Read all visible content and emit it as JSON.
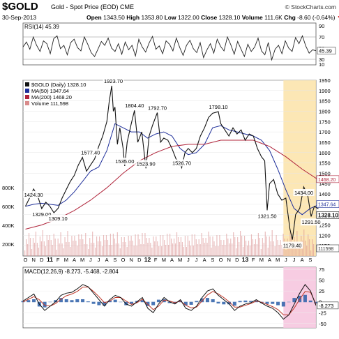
{
  "header": {
    "symbol": "$GOLD",
    "name": "Gold - Spot Price (EOD)",
    "exchange": "CME",
    "brand": "© StockCharts.com",
    "date": "30-Sep-2013",
    "open_label": "Open",
    "open": "1343.50",
    "high_label": "High",
    "high": "1353.80",
    "low_label": "Low",
    "low": "1322.00",
    "close_label": "Close",
    "close": "1328.10",
    "volume_label": "Volume",
    "volume": "111.6K",
    "chg_label": "Chg",
    "chg": "-8.60 (-0.64%)",
    "chg_arrow": "▼"
  },
  "colors": {
    "price": "#111111",
    "ma50": "#1f2f9a",
    "ma200": "#b0243a",
    "volume": "#d98b8b",
    "highlight": "#fbe3a8",
    "macd_highlight": "#f6c6df",
    "rsi": "#222222",
    "histogram": "#2a5ea8"
  },
  "chart_data": [
    {
      "type": "line",
      "title": "RSI(14) 45.39",
      "indicator": "RSI(14)",
      "last_value": 45.39,
      "ylim": [
        20,
        95
      ],
      "y_ticks": [
        10,
        30,
        50,
        70,
        90
      ],
      "reference_lines": [
        30,
        70
      ],
      "series": [
        {
          "name": "RSI(14)",
          "values": [
            52,
            61,
            48,
            70,
            55,
            44,
            63,
            58,
            40,
            67,
            72,
            49,
            55,
            38,
            60,
            66,
            51,
            45,
            70,
            57,
            42,
            35,
            48,
            62,
            55,
            68,
            50,
            44,
            58,
            39,
            61,
            47,
            55,
            36,
            66,
            52,
            43,
            59,
            71,
            48,
            54,
            40,
            63,
            57,
            45,
            68,
            51,
            37,
            55,
            64,
            49,
            42,
            60,
            33,
            47,
            58,
            41,
            66,
            53,
            45,
            70,
            56,
            39,
            62,
            48,
            35,
            57,
            44,
            52,
            68,
            45,
            38,
            60,
            29,
            48,
            55,
            40,
            63,
            50,
            44,
            69,
            58,
            72,
            54,
            41,
            47,
            45.39
          ]
        }
      ]
    },
    {
      "type": "line",
      "title": "$GOLD (Daily) 1328.10",
      "x_ticks": [
        "O",
        "N",
        "D",
        "11",
        "F",
        "M",
        "A",
        "M",
        "J",
        "J",
        "A",
        "S",
        "O",
        "N",
        "D",
        "12",
        "F",
        "M",
        "A",
        "M",
        "J",
        "J",
        "A",
        "S",
        "O",
        "N",
        "D",
        "13",
        "F",
        "M",
        "A",
        "M",
        "J",
        "J",
        "A",
        "S"
      ],
      "ylim": [
        1100,
        1950
      ],
      "y_ticks": [
        1150,
        1200,
        1250,
        1300,
        1350,
        1400,
        1450,
        1500,
        1550,
        1600,
        1650,
        1700,
        1750,
        1800,
        1850,
        1900,
        1950
      ],
      "volume_ticks": [
        "200K",
        "400K",
        "600K",
        "800K"
      ],
      "legend": [
        {
          "name": "$GOLD (Daily) 1328.10",
          "key": "price"
        },
        {
          "name": "MA(50) 1347.64",
          "key": "ma50"
        },
        {
          "name": "MA(200) 1468.20",
          "key": "ma200"
        },
        {
          "name": "Volume 111,598",
          "key": "volume"
        }
      ],
      "annotations": [
        {
          "text": "1424.30",
          "x": 1,
          "y": 1424.3
        },
        {
          "text": "1329.00",
          "x": 2,
          "y": 1329.0
        },
        {
          "text": "1309.10",
          "x": 4,
          "y": 1309.1
        },
        {
          "text": "1577.40",
          "x": 8,
          "y": 1577.4
        },
        {
          "text": "1923.70",
          "x": 10.8,
          "y": 1923.7
        },
        {
          "text": "1535.00",
          "x": 12.2,
          "y": 1535.0
        },
        {
          "text": "1804.40",
          "x": 13.4,
          "y": 1804.4
        },
        {
          "text": "1523.90",
          "x": 14.8,
          "y": 1523.9
        },
        {
          "text": "1792.70",
          "x": 16.2,
          "y": 1792.7
        },
        {
          "text": "1526.70",
          "x": 19.2,
          "y": 1526.7
        },
        {
          "text": "1798.10",
          "x": 23.7,
          "y": 1798.1
        },
        {
          "text": "1321.50",
          "x": 29.7,
          "y": 1321.5
        },
        {
          "text": "1179.40",
          "x": 32.8,
          "y": 1179.4
        },
        {
          "text": "1434.00",
          "x": 34.2,
          "y": 1434.0
        },
        {
          "text": "1291.50",
          "x": 35.1,
          "y": 1291.5
        }
      ],
      "right_labels": [
        "1468.20",
        "1347.64",
        "1328.10",
        "111598"
      ],
      "series": [
        {
          "name": "$GOLD (Daily)",
          "x": [
            0,
            0.5,
            1,
            1.5,
            2,
            2.5,
            3,
            3.5,
            4,
            4.5,
            5,
            5.5,
            6,
            6.5,
            7,
            7.5,
            8,
            8.5,
            9,
            9.5,
            10,
            10.3,
            10.6,
            10.8,
            11,
            11.3,
            11.6,
            12,
            12.2,
            12.5,
            13,
            13.4,
            13.8,
            14.3,
            14.8,
            15.2,
            15.6,
            16.2,
            16.6,
            17,
            17.5,
            18,
            18.5,
            19,
            19.2,
            19.6,
            20,
            20.5,
            21,
            21.5,
            22,
            22.5,
            23,
            23.7,
            24,
            24.5,
            25,
            25.5,
            26,
            26.5,
            27,
            27.5,
            28,
            28.5,
            29,
            29.4,
            29.7,
            30,
            30.5,
            31,
            31.5,
            32,
            32.5,
            32.8,
            33.2,
            33.7,
            34.2,
            34.7,
            35.1,
            35.5,
            36
          ],
          "values": [
            1340,
            1380,
            1424,
            1390,
            1329,
            1360,
            1340,
            1309,
            1330,
            1380,
            1420,
            1460,
            1490,
            1540,
            1577,
            1510,
            1540,
            1570,
            1630,
            1680,
            1750,
            1850,
            1923,
            1800,
            1820,
            1640,
            1720,
            1620,
            1535,
            1650,
            1740,
            1804,
            1650,
            1700,
            1524,
            1680,
            1730,
            1793,
            1650,
            1670,
            1660,
            1620,
            1570,
            1550,
            1527,
            1600,
            1620,
            1600,
            1620,
            1680,
            1720,
            1770,
            1790,
            1798,
            1740,
            1710,
            1680,
            1720,
            1690,
            1710,
            1660,
            1690,
            1680,
            1620,
            1580,
            1560,
            1321,
            1450,
            1470,
            1400,
            1370,
            1380,
            1230,
            1179,
            1300,
            1330,
            1434,
            1390,
            1291,
            1340,
            1328
          ]
        },
        {
          "name": "MA(50)",
          "x": [
            0,
            1,
            2,
            3,
            4,
            5,
            6,
            7,
            8,
            9,
            10,
            11,
            12,
            13,
            14,
            15,
            16,
            17,
            18,
            19,
            20,
            21,
            22,
            23,
            24,
            25,
            26,
            27,
            28,
            29,
            30,
            31,
            32,
            33,
            34,
            35,
            36
          ],
          "values": [
            1340,
            1350,
            1355,
            1350,
            1345,
            1370,
            1410,
            1460,
            1510,
            1530,
            1610,
            1740,
            1720,
            1700,
            1700,
            1670,
            1690,
            1700,
            1680,
            1620,
            1590,
            1600,
            1640,
            1720,
            1730,
            1710,
            1700,
            1690,
            1680,
            1660,
            1610,
            1520,
            1420,
            1330,
            1300,
            1330,
            1347.64
          ]
        },
        {
          "name": "MA(200)",
          "x": [
            0,
            2,
            4,
            6,
            8,
            10,
            12,
            14,
            16,
            18,
            20,
            22,
            24,
            26,
            28,
            30,
            32,
            34,
            36
          ],
          "values": [
            1230,
            1250,
            1280,
            1320,
            1370,
            1430,
            1500,
            1560,
            1600,
            1630,
            1640,
            1640,
            1660,
            1660,
            1660,
            1630,
            1580,
            1520,
            1468.2
          ]
        }
      ]
    },
    {
      "type": "line",
      "title": "MACD(12,26,9) -8.273, -5.468, -2.804",
      "indicator": "MACD(12,26,9)",
      "macd": -8.273,
      "signal": -5.468,
      "histogram_last": -2.804,
      "ylim": [
        -60,
        80
      ],
      "y_ticks": [
        75,
        50,
        25,
        0,
        -25,
        -50
      ],
      "series": [
        {
          "name": "MACD",
          "values": [
            2,
            10,
            18,
            -5,
            -20,
            -10,
            0,
            15,
            20,
            22,
            30,
            40,
            35,
            20,
            5,
            -10,
            5,
            15,
            10,
            -5,
            -10,
            0,
            10,
            -15,
            -25,
            -5,
            10,
            0,
            -5,
            5,
            -15,
            -20,
            -10,
            10,
            25,
            30,
            15,
            5,
            -5,
            -20,
            -10,
            -5,
            -2,
            5,
            -3,
            -10,
            -15,
            -25,
            -40,
            -30,
            -5,
            20,
            40,
            25,
            -8.273
          ]
        },
        {
          "name": "Signal",
          "values": [
            0,
            6,
            12,
            5,
            -8,
            -10,
            -4,
            6,
            14,
            18,
            24,
            34,
            34,
            24,
            12,
            -2,
            2,
            10,
            10,
            2,
            -6,
            -2,
            6,
            -6,
            -18,
            -10,
            4,
            2,
            -2,
            2,
            -8,
            -14,
            -12,
            2,
            16,
            24,
            18,
            10,
            0,
            -12,
            -12,
            -8,
            -4,
            2,
            -1,
            -6,
            -11,
            -18,
            -30,
            -30,
            -14,
            6,
            24,
            22,
            -5.468
          ]
        }
      ]
    }
  ]
}
